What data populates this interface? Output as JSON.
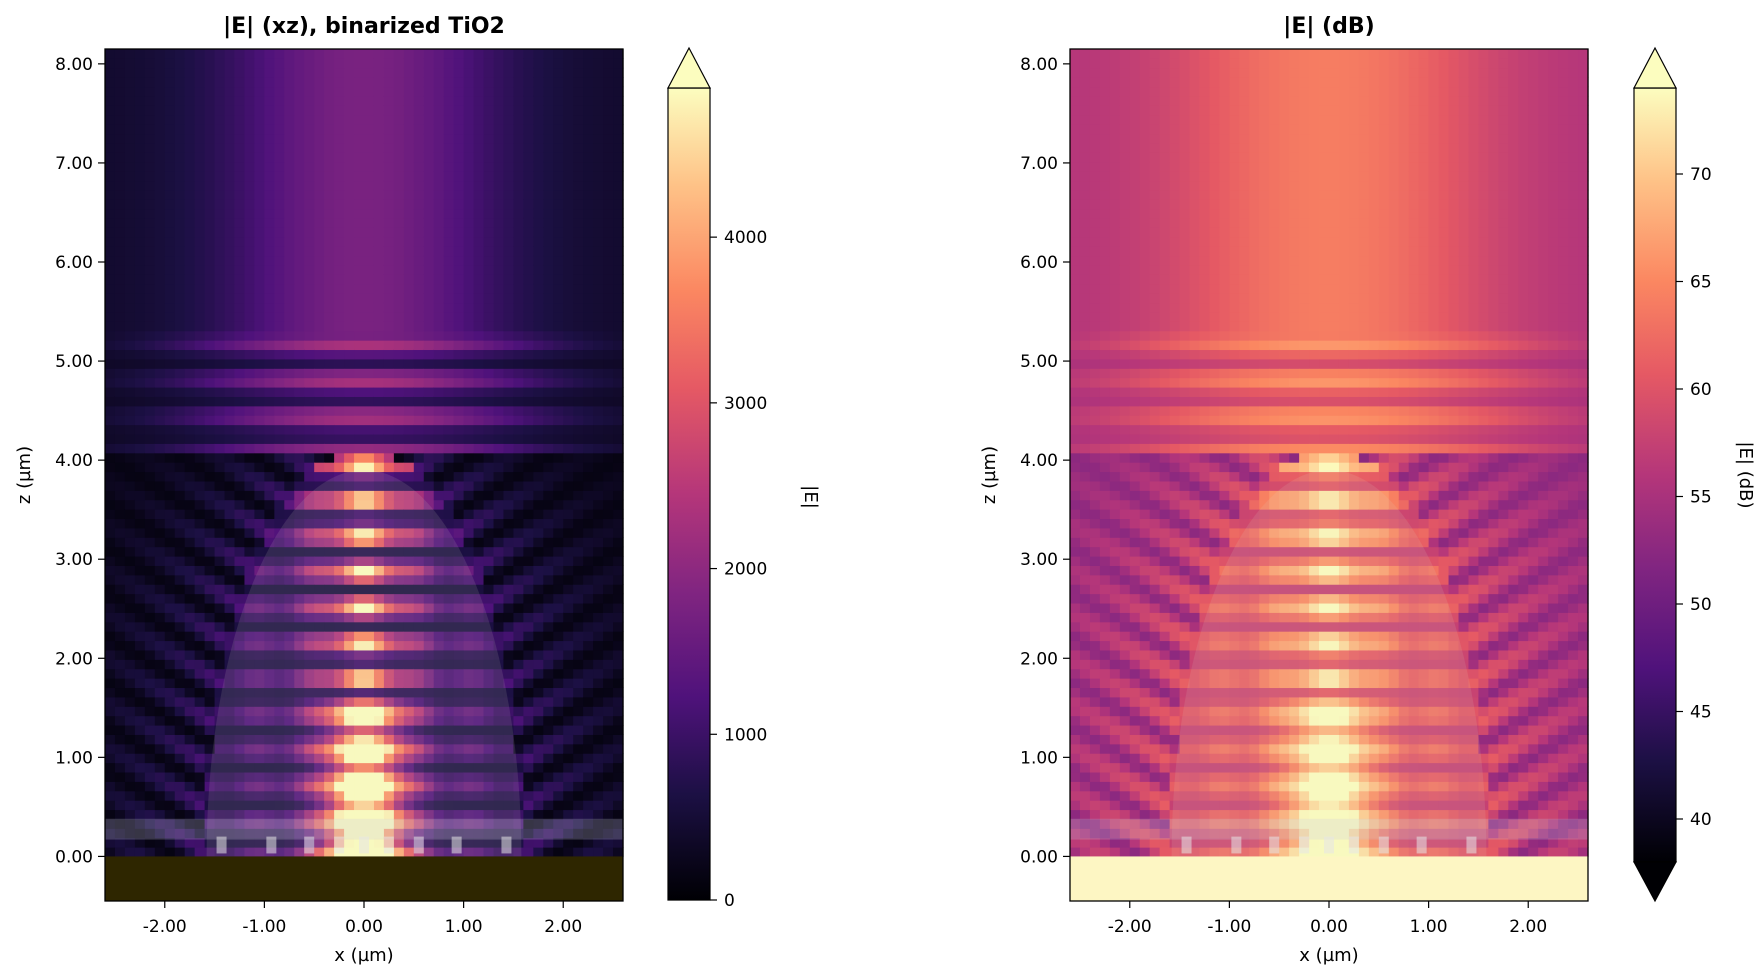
{
  "chart_data": [
    {
      "type": "heatmap",
      "title": "|E| (xz), binarized TiO2",
      "xlabel": "x (µm)",
      "ylabel": "z (µm)",
      "xlim": [
        -2.6,
        2.6
      ],
      "ylim": [
        -0.45,
        8.15
      ],
      "xticks": [
        "-2.00",
        "-1.00",
        "0.00",
        "1.00",
        "2.00"
      ],
      "xtick_values": [
        -2,
        -1,
        0,
        1,
        2
      ],
      "yticks": [
        "0.00",
        "1.00",
        "2.00",
        "3.00",
        "4.00",
        "5.00",
        "6.00",
        "7.00",
        "8.00"
      ],
      "ytick_values": [
        0,
        1,
        2,
        3,
        4,
        5,
        6,
        7,
        8
      ],
      "colormap": "magma",
      "colorbar": {
        "label": "|E|",
        "range": [
          0,
          4900
        ],
        "ticks": [
          "0",
          "1000",
          "2000",
          "3000",
          "4000"
        ],
        "tick_values": [
          0,
          1000,
          2000,
          3000,
          4000
        ],
        "extend": "max"
      },
      "substrate_color": "#2e2600"
    },
    {
      "type": "heatmap",
      "title": "|E| (dB)",
      "xlabel": "x (µm)",
      "ylabel": "z (µm)",
      "xlim": [
        -2.6,
        2.6
      ],
      "ylim": [
        -0.45,
        8.15
      ],
      "xticks": [
        "-2.00",
        "-1.00",
        "0.00",
        "1.00",
        "2.00"
      ],
      "xtick_values": [
        -2,
        -1,
        0,
        1,
        2
      ],
      "yticks": [
        "0.00",
        "1.00",
        "2.00",
        "3.00",
        "4.00",
        "5.00",
        "6.00",
        "7.00",
        "8.00"
      ],
      "ytick_values": [
        0,
        1,
        2,
        3,
        4,
        5,
        6,
        7,
        8
      ],
      "colormap": "magma",
      "colorbar": {
        "label": "|E| (dB)",
        "range": [
          38,
          74
        ],
        "ticks": [
          "40",
          "45",
          "50",
          "55",
          "60",
          "65",
          "70"
        ],
        "tick_values": [
          40,
          45,
          50,
          55,
          60,
          65,
          70
        ],
        "extend": "both"
      },
      "substrate_color": "#fdf6c3"
    }
  ]
}
